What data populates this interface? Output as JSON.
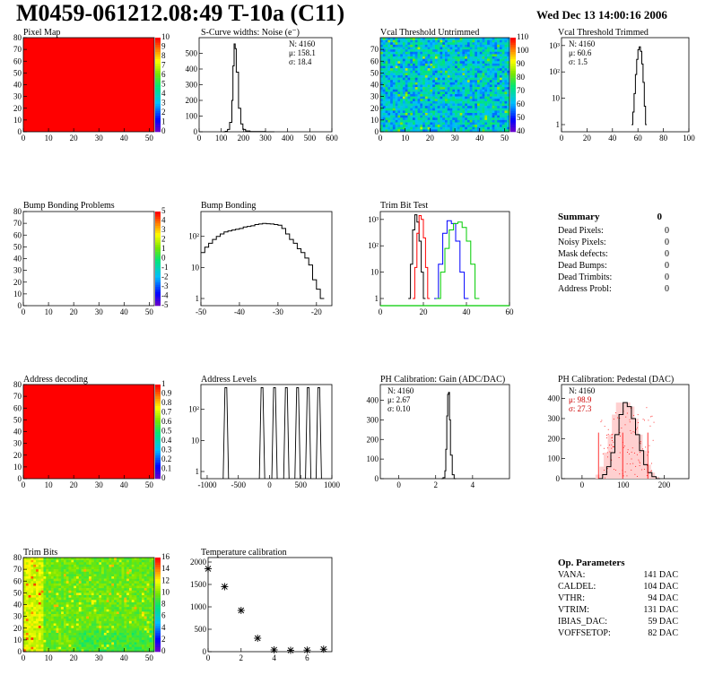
{
  "header": {
    "title": "M0459-061212.08:49 T-10a (C11)",
    "date": "Wed Dec 13 14:00:16 2006"
  },
  "chart_data": [
    {
      "id": "pixel-map",
      "type": "heatmap",
      "title": "Pixel Map",
      "y_ticks": [
        "0",
        "10",
        "20",
        "30",
        "40",
        "50",
        "60",
        "70",
        "80"
      ],
      "x_ticks": [
        "0",
        "10",
        "20",
        "30",
        "40",
        "50"
      ],
      "colorbar_ticks": [
        "0",
        "1",
        "2",
        "3",
        "4",
        "5",
        "6",
        "7",
        "8",
        "9",
        "10"
      ],
      "fill": "uniform-max",
      "uniform_color": "#ff0000"
    },
    {
      "id": "scurve-widths",
      "type": "line",
      "title": "S-Curve widths: Noise (e⁻)",
      "x_ticks": [
        "0",
        "100",
        "200",
        "300",
        "400",
        "500",
        "600"
      ],
      "y_ticks": [
        "0",
        "100",
        "200",
        "300",
        "400",
        "500"
      ],
      "xlim": [
        0,
        600
      ],
      "ylim": [
        0,
        600
      ],
      "stats": [
        "N: 4160",
        "μ: 158.1",
        "σ: 18.4"
      ],
      "x": [
        108,
        118,
        128,
        138,
        148,
        153,
        158,
        163,
        168,
        178,
        188,
        198,
        210,
        230,
        260,
        300
      ],
      "y": [
        0,
        3,
        15,
        60,
        200,
        420,
        560,
        530,
        380,
        150,
        50,
        15,
        5,
        2,
        1,
        0
      ]
    },
    {
      "id": "vcal-untrimmed",
      "type": "heatmap",
      "title": "Vcal Threshold Untrimmed",
      "y_ticks": [
        "0",
        "10",
        "20",
        "30",
        "40",
        "50",
        "60",
        "70"
      ],
      "x_ticks": [
        "0",
        "10",
        "20",
        "30",
        "40",
        "50"
      ],
      "colorbar_ticks": [
        "40",
        "50",
        "60",
        "70",
        "80",
        "90",
        "100",
        "110"
      ],
      "fill": "noise"
    },
    {
      "id": "vcal-trimmed",
      "type": "line",
      "title": "Vcal Threshold Trimmed",
      "scale": "log",
      "x_ticks": [
        "0",
        "20",
        "40",
        "60",
        "80",
        "100"
      ],
      "y_ticks": [
        "1",
        "10",
        "10²",
        "10³"
      ],
      "xlim": [
        0,
        100
      ],
      "stats": [
        "N: 4160",
        "μ: 60.6",
        "σ: 1.5"
      ],
      "x": [
        55,
        56,
        57,
        58,
        59,
        60,
        61,
        62,
        63,
        64,
        65,
        66
      ],
      "y": [
        1,
        3,
        15,
        80,
        300,
        700,
        900,
        600,
        200,
        40,
        5,
        1
      ]
    },
    {
      "id": "bump-problems",
      "type": "heatmap",
      "title": "Bump Bonding Problems",
      "y_ticks": [
        "0",
        "10",
        "20",
        "30",
        "40",
        "50",
        "60",
        "70",
        "80"
      ],
      "x_ticks": [
        "0",
        "10",
        "20",
        "30",
        "40",
        "50"
      ],
      "colorbar_ticks": [
        "-5",
        "-4",
        "-3",
        "-2",
        "-1",
        "0",
        "1",
        "2",
        "3",
        "4",
        "5"
      ],
      "fill": "empty"
    },
    {
      "id": "bump-bonding",
      "type": "line",
      "title": "Bump Bonding",
      "scale": "log",
      "x_ticks": [
        "-50",
        "-40",
        "-30",
        "-20"
      ],
      "y_ticks": [
        "1",
        "10",
        "10²"
      ],
      "xlim": [
        -50,
        -16
      ],
      "x": [
        -50,
        -49,
        -48,
        -47,
        -46,
        -45,
        -44,
        -43,
        -42,
        -41,
        -40,
        -39,
        -38,
        -37,
        -36,
        -35,
        -34,
        -33,
        -32,
        -31,
        -30,
        -29,
        -28,
        -27,
        -26,
        -25,
        -24,
        -23,
        -22,
        -21,
        -20,
        -19
      ],
      "y": [
        30,
        45,
        60,
        80,
        100,
        120,
        140,
        150,
        160,
        170,
        180,
        200,
        210,
        220,
        240,
        250,
        260,
        255,
        250,
        240,
        230,
        180,
        120,
        80,
        60,
        40,
        30,
        20,
        12,
        4,
        2,
        1
      ]
    },
    {
      "id": "trim-bit-test",
      "type": "line",
      "title": "Trim Bit Test",
      "scale": "log",
      "x_ticks": [
        "0",
        "20",
        "40",
        "60"
      ],
      "y_ticks": [
        "1",
        "10",
        "10²",
        "10³"
      ],
      "xlim": [
        0,
        60
      ],
      "series": [
        {
          "color": "#000000",
          "x": [
            13,
            14,
            15,
            16,
            17,
            18,
            19,
            20
          ],
          "y": [
            1,
            20,
            400,
            1500,
            800,
            150,
            10,
            1
          ]
        },
        {
          "color": "#ff0000",
          "x": [
            15,
            16,
            17,
            18,
            19,
            20,
            21,
            22
          ],
          "y": [
            1,
            15,
            300,
            1400,
            1000,
            200,
            15,
            1
          ]
        },
        {
          "color": "#0000ff",
          "x": [
            25,
            27,
            29,
            31,
            33,
            35,
            37,
            39
          ],
          "y": [
            1,
            20,
            300,
            900,
            700,
            150,
            10,
            1
          ]
        },
        {
          "color": "#00cc00",
          "x": [
            26,
            28,
            30,
            32,
            34,
            36,
            38,
            40,
            42,
            44
          ],
          "y": [
            1,
            10,
            80,
            400,
            700,
            800,
            500,
            150,
            20,
            1
          ]
        }
      ]
    },
    {
      "id": "address-decoding",
      "type": "heatmap",
      "title": "Address decoding",
      "y_ticks": [
        "0",
        "10",
        "20",
        "30",
        "40",
        "50",
        "60",
        "70",
        "80"
      ],
      "x_ticks": [
        "0",
        "10",
        "20",
        "30",
        "40",
        "50"
      ],
      "colorbar_ticks": [
        "0",
        "0.1",
        "0.2",
        "0.3",
        "0.4",
        "0.5",
        "0.6",
        "0.7",
        "0.8",
        "0.9",
        "1"
      ],
      "fill": "uniform-max",
      "uniform_color": "#ff0000"
    },
    {
      "id": "address-levels",
      "type": "line",
      "title": "Address Levels",
      "scale": "log",
      "x_ticks": [
        "-1000",
        "-500",
        "0",
        "500",
        "1000"
      ],
      "y_ticks": [
        "1",
        "10",
        "10²"
      ],
      "xlim": [
        -1100,
        1000
      ],
      "peaks": [
        -700,
        -120,
        80,
        270,
        450,
        620,
        790
      ],
      "peak_height": 500
    },
    {
      "id": "ph-gain",
      "type": "line",
      "title": "PH Calibration: Gain (ADC/DAC)",
      "x_ticks": [
        "0",
        "2",
        "4"
      ],
      "y_ticks": [
        "0",
        "100",
        "200",
        "300",
        "400"
      ],
      "xlim": [
        -1,
        6
      ],
      "ylim": [
        0,
        480
      ],
      "stats": [
        "N: 4160",
        "μ: 2.67",
        "σ: 0.10"
      ],
      "x": [
        2.3,
        2.4,
        2.5,
        2.55,
        2.6,
        2.65,
        2.7,
        2.75,
        2.8,
        2.9,
        3.0
      ],
      "y": [
        0,
        5,
        40,
        150,
        320,
        430,
        440,
        300,
        120,
        20,
        0
      ]
    },
    {
      "id": "ph-pedestal",
      "type": "line",
      "title": "PH Calibration: Pedestal (DAC)",
      "x_ticks": [
        "0",
        "100",
        "200"
      ],
      "y_ticks": [
        "0",
        "100",
        "200",
        "300",
        "400"
      ],
      "xlim": [
        -50,
        260
      ],
      "ylim": [
        0,
        470
      ],
      "stats": [
        "N: 4160",
        "μ: 98.9",
        "σ: 27.3"
      ],
      "x": [
        40,
        50,
        60,
        70,
        80,
        90,
        100,
        110,
        120,
        130,
        140,
        150,
        160,
        170,
        180
      ],
      "y": [
        0,
        20,
        60,
        130,
        220,
        320,
        380,
        360,
        300,
        220,
        140,
        70,
        30,
        10,
        0
      ],
      "markers": [
        40,
        98.9,
        160
      ]
    },
    {
      "id": "trim-bits",
      "type": "heatmap",
      "title": "Trim Bits",
      "y_ticks": [
        "0",
        "10",
        "20",
        "30",
        "40",
        "50",
        "60",
        "70",
        "80"
      ],
      "x_ticks": [
        "0",
        "10",
        "20",
        "30",
        "40",
        "50"
      ],
      "colorbar_ticks": [
        "0",
        "2",
        "4",
        "6",
        "8",
        "10",
        "12",
        "14",
        "16"
      ],
      "fill": "trim"
    },
    {
      "id": "temperature",
      "type": "scatter",
      "title": "Temperature calibration",
      "x_ticks": [
        "0",
        "2",
        "4",
        "6"
      ],
      "y_ticks": [
        "0",
        "500",
        "1000",
        "1500",
        "2000"
      ],
      "xlim": [
        0,
        7.5
      ],
      "ylim": [
        0,
        2100
      ],
      "x": [
        0,
        1,
        2,
        3,
        4,
        5,
        6,
        7
      ],
      "y": [
        1850,
        1450,
        920,
        300,
        40,
        30,
        35,
        55
      ]
    }
  ],
  "summary": {
    "title": "Summary",
    "total": "0",
    "rows": [
      {
        "label": "Dead Pixels:",
        "value": "0"
      },
      {
        "label": "Noisy Pixels:",
        "value": "0"
      },
      {
        "label": "Mask defects:",
        "value": "0"
      },
      {
        "label": "Dead Bumps:",
        "value": "0"
      },
      {
        "label": "Dead Trimbits:",
        "value": "0"
      },
      {
        "label": "Address Probl:",
        "value": "0"
      }
    ]
  },
  "op_params": {
    "title": "Op. Parameters",
    "rows": [
      {
        "label": "VANA:",
        "value": "141 DAC"
      },
      {
        "label": "CALDEL:",
        "value": "104 DAC"
      },
      {
        "label": "VTHR:",
        "value": "94 DAC"
      },
      {
        "label": "VTRIM:",
        "value": "131 DAC"
      },
      {
        "label": "IBIAS_DAC:",
        "value": "59 DAC"
      },
      {
        "label": "VOFFSETOP:",
        "value": "82 DAC"
      }
    ]
  }
}
